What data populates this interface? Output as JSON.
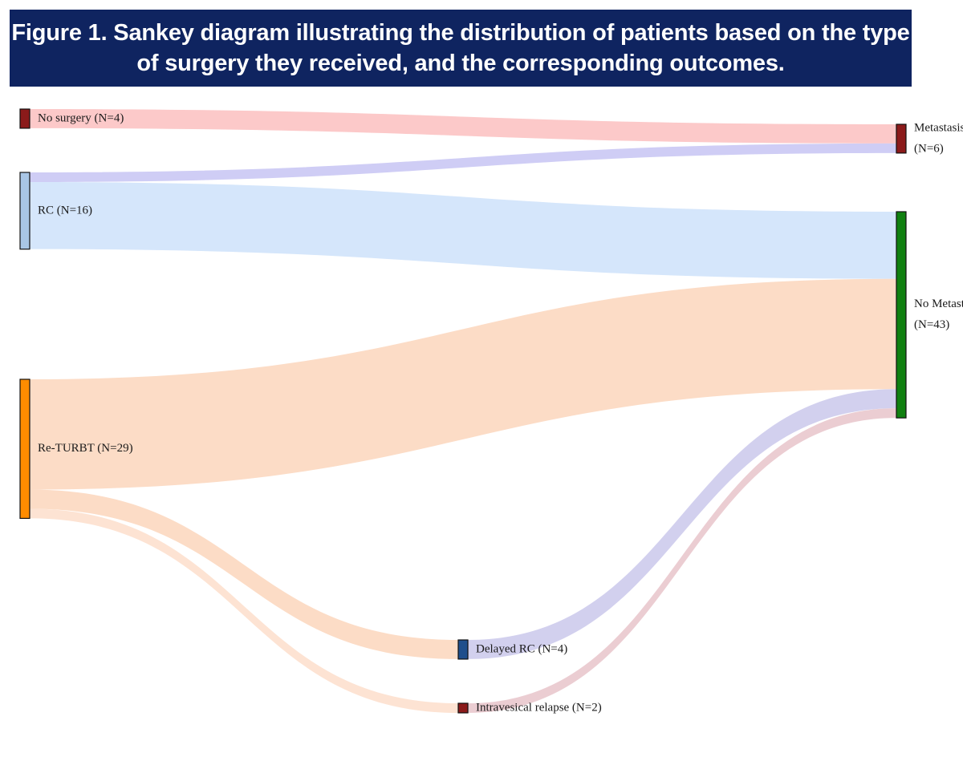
{
  "figure": {
    "title_line1": "Figure 1. Sankey diagram illustrating the distribution of patients based on the type",
    "title_line2": "of surgery they received, and the corresponding outcomes."
  },
  "colors": {
    "title_bg": "#0f2460",
    "no_surgery": "#8b1a1a",
    "rc": "#a9c6e6",
    "re_turbt": "#ff8c00",
    "delayed_rc": "#1f4e8c",
    "intravesical_relapse": "#8b1a1a",
    "metastasis": "#8b1a1a",
    "no_metastasis": "#108010"
  },
  "nodes": [
    {
      "id": "no_surgery",
      "label": "No surgery (N=4)",
      "value": 4
    },
    {
      "id": "rc",
      "label": "RC (N=16)",
      "value": 16
    },
    {
      "id": "re_turbt",
      "label": "Re-TURBT (N=29)",
      "value": 29
    },
    {
      "id": "delayed_rc",
      "label": "Delayed RC (N=4)",
      "value": 4
    },
    {
      "id": "intravesical_relapse",
      "label": "Intravesical relapse (N=2)",
      "value": 2
    },
    {
      "id": "metastasis",
      "label_line1": "Metastasis",
      "label_line2": "(N=6)",
      "value": 6
    },
    {
      "id": "no_metastasis",
      "label_line1": "No Metast",
      "label_line2": "(N=43)",
      "value": 43
    }
  ],
  "links": [
    {
      "source": "no_surgery",
      "target": "metastasis",
      "value": 4
    },
    {
      "source": "rc",
      "target": "metastasis",
      "value": 2
    },
    {
      "source": "rc",
      "target": "no_metastasis",
      "value": 14
    },
    {
      "source": "re_turbt",
      "target": "no_metastasis",
      "value": 23
    },
    {
      "source": "re_turbt",
      "target": "delayed_rc",
      "value": 4
    },
    {
      "source": "re_turbt",
      "target": "intravesical_relapse",
      "value": 2
    },
    {
      "source": "delayed_rc",
      "target": "no_metastasis",
      "value": 4
    },
    {
      "source": "intravesical_relapse",
      "target": "no_metastasis",
      "value": 2
    }
  ]
}
